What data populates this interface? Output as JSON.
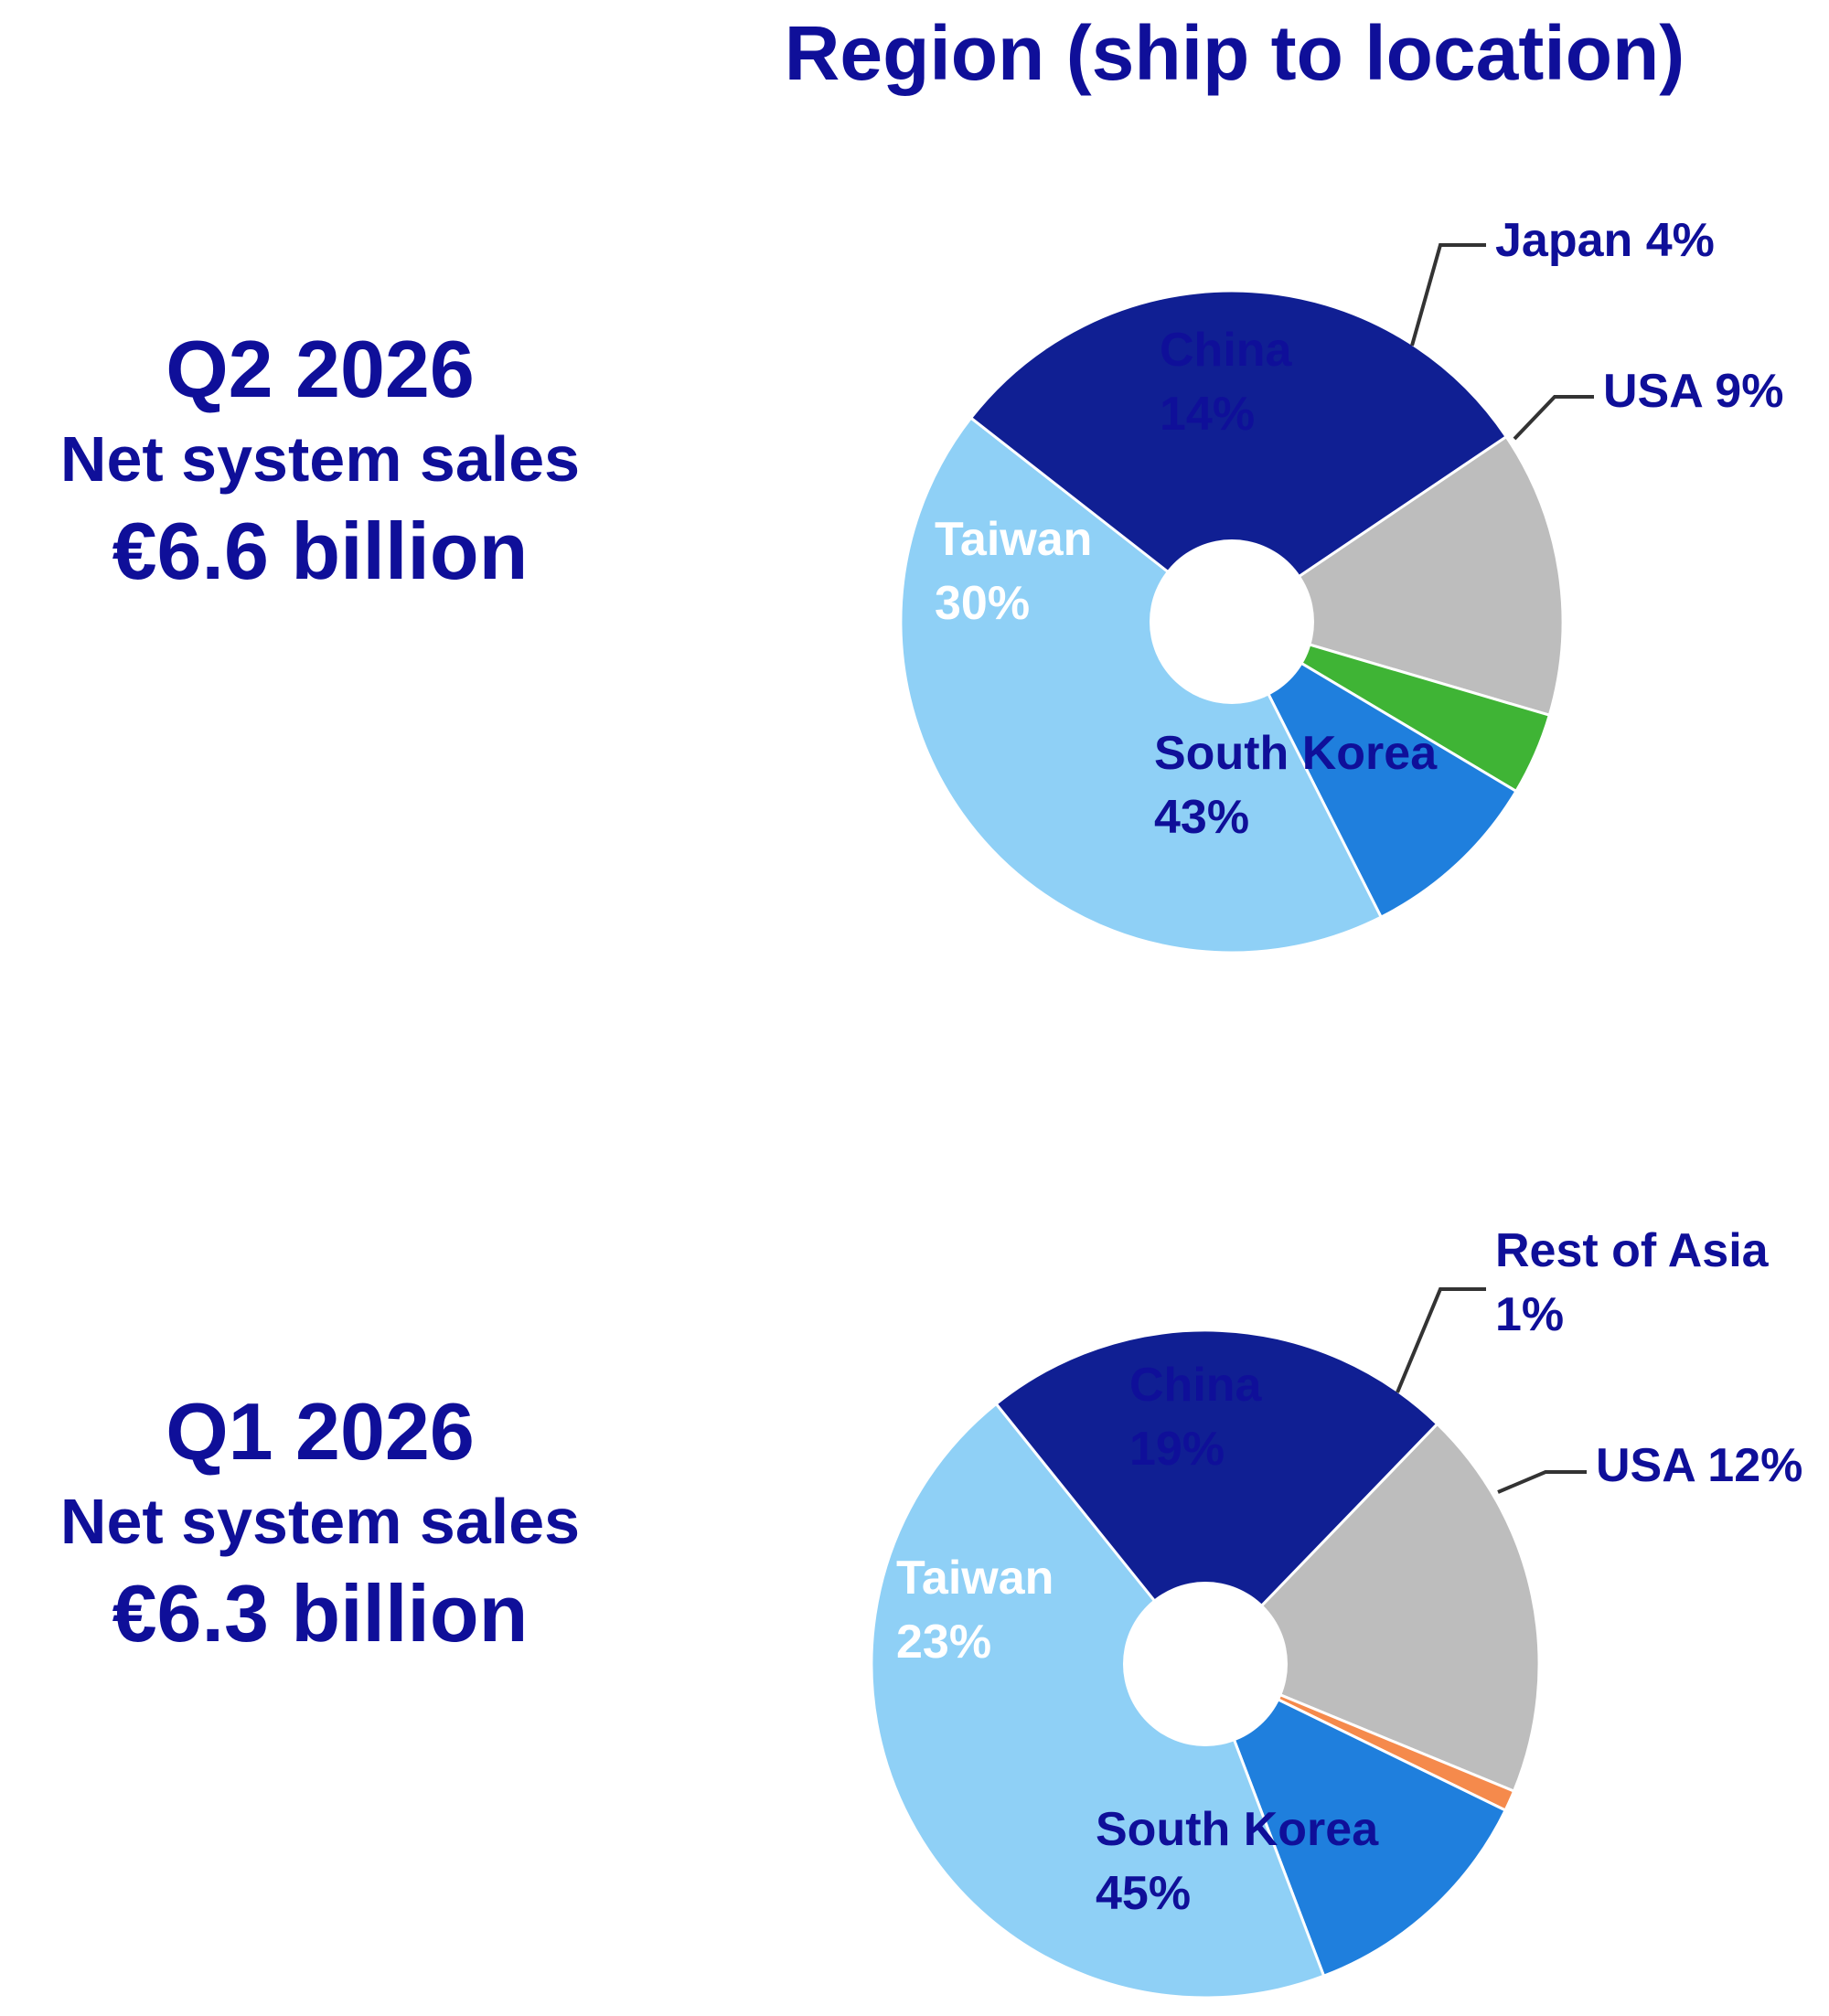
{
  "title": "Region (ship to location)",
  "panels": [
    {
      "period": "Q2 2026",
      "metric": "Net system sales",
      "amount": "€6.6 billion"
    },
    {
      "period": "Q1 2026",
      "metric": "Net system sales",
      "amount": "€6.3 billion"
    }
  ],
  "colors": {
    "China": "#bdbdbd",
    "Japan": "#3fb435",
    "Rest of Asia": "#f58a4c",
    "USA": "#1f7fdd",
    "South Korea": "#8fd0f6",
    "Taiwan": "#101f93",
    "text_dark": "#0f0f99",
    "text_light": "#ffffff"
  },
  "chart_data": [
    {
      "type": "pie",
      "title": "",
      "categories": [
        "China",
        "Japan",
        "USA",
        "South Korea",
        "Taiwan"
      ],
      "values": [
        14,
        4,
        9,
        43,
        30
      ],
      "labels": [
        {
          "category": "China",
          "lines": [
            "China",
            "14%"
          ]
        },
        {
          "category": "Japan",
          "lines": [
            "Japan 4%"
          ]
        },
        {
          "category": "USA",
          "lines": [
            "USA 9%"
          ]
        },
        {
          "category": "South Korea",
          "lines": [
            "South Korea",
            "43%"
          ]
        },
        {
          "category": "Taiwan",
          "lines": [
            "Taiwan",
            "30%"
          ]
        }
      ]
    },
    {
      "type": "pie",
      "title": "",
      "categories": [
        "China",
        "Rest of Asia",
        "USA",
        "South Korea",
        "Taiwan"
      ],
      "values": [
        19,
        1,
        12,
        45,
        23
      ],
      "labels": [
        {
          "category": "China",
          "lines": [
            "China",
            "19%"
          ]
        },
        {
          "category": "Rest of Asia",
          "lines": [
            "Rest of Asia",
            "1%"
          ]
        },
        {
          "category": "USA",
          "lines": [
            "USA 12%"
          ]
        },
        {
          "category": "South Korea",
          "lines": [
            "South Korea",
            "45%"
          ]
        },
        {
          "category": "Taiwan",
          "lines": [
            "Taiwan",
            "23%"
          ]
        }
      ]
    }
  ]
}
